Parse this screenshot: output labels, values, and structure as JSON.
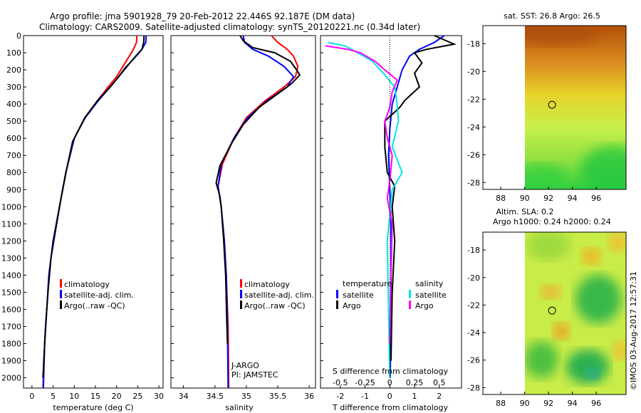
{
  "title": {
    "line1": "Argo profile: jma 5901928_79 20-Feb-2012 22.446S 92.187E (DM data)",
    "line2": "Climatology: CARS2009. Satellite-adjusted climatology: synTS_20120221.nc (0.34d later)"
  },
  "colors": {
    "climatology": "#ff0000",
    "satellite": "#0000ff",
    "argo": "#000000",
    "sat_salinity": "#00e5e5",
    "argo_salinity": "#ff00ff"
  },
  "chart_data": [
    {
      "id": "temperature",
      "type": "line",
      "xlabel": "temperature (deg C)",
      "ylabel": "",
      "xlim": [
        -2,
        31
      ],
      "ylim": [
        2060,
        0
      ],
      "xticks": [
        0,
        5,
        10,
        15,
        20,
        25,
        30
      ],
      "yticks": [
        0,
        100,
        200,
        300,
        400,
        500,
        600,
        700,
        800,
        900,
        1000,
        1100,
        1200,
        1300,
        1400,
        1500,
        1600,
        1700,
        1800,
        1900,
        2000
      ],
      "legend": {
        "position": "lower-left",
        "entries": [
          "climatology",
          "satellite-adj. clim.",
          "Argo(..raw -QC)"
        ]
      },
      "series": [
        {
          "name": "climatology",
          "color": "#ff0000",
          "points": [
            [
              24.8,
              0
            ],
            [
              24.7,
              40
            ],
            [
              24,
              80
            ],
            [
              23,
              120
            ],
            [
              21.5,
              180
            ],
            [
              20,
              240
            ],
            [
              18,
              300
            ],
            [
              15.5,
              380
            ],
            [
              12.5,
              480
            ],
            [
              10,
              600
            ],
            [
              8,
              800
            ],
            [
              6.5,
              1000
            ],
            [
              5,
              1200
            ],
            [
              4,
              1400
            ],
            [
              3.5,
              1600
            ],
            [
              3,
              1800
            ],
            [
              2.6,
              2060
            ]
          ]
        },
        {
          "name": "satellite-adj. clim.",
          "color": "#0000ff",
          "points": [
            [
              27,
              0
            ],
            [
              26.9,
              40
            ],
            [
              26,
              80
            ],
            [
              24.5,
              120
            ],
            [
              22.5,
              180
            ],
            [
              20.5,
              240
            ],
            [
              18.5,
              300
            ],
            [
              15.7,
              380
            ],
            [
              12.6,
              480
            ],
            [
              10,
              600
            ],
            [
              8,
              800
            ],
            [
              6.5,
              1000
            ],
            [
              5,
              1200
            ],
            [
              4,
              1400
            ],
            [
              3.5,
              1600
            ],
            [
              3,
              1800
            ],
            [
              2.7,
              2060
            ]
          ]
        },
        {
          "name": "Argo(..raw -QC)",
          "color": "#000000",
          "points": [
            [
              26.5,
              0
            ],
            [
              26.4,
              40
            ],
            [
              26,
              80
            ],
            [
              25,
              110
            ],
            [
              23.5,
              150
            ],
            [
              22,
              190
            ],
            [
              20.5,
              240
            ],
            [
              18.5,
              300
            ],
            [
              15.5,
              380
            ],
            [
              12.5,
              480
            ],
            [
              9.6,
              620
            ],
            [
              8.2,
              780
            ],
            [
              6.8,
              960
            ],
            [
              5.5,
              1150
            ],
            [
              4.5,
              1300
            ],
            [
              3.8,
              1500
            ],
            [
              3.2,
              1700
            ],
            [
              2.8,
              1900
            ],
            [
              2.6,
              2000
            ]
          ]
        }
      ]
    },
    {
      "id": "salinity",
      "type": "line",
      "xlabel": "salinity",
      "ylabel": "",
      "xlim": [
        33.8,
        36.1
      ],
      "ylim": [
        2060,
        0
      ],
      "xticks": [
        34,
        34.5,
        35,
        35.5,
        36
      ],
      "xtick_labels": [
        "34",
        "34.5",
        "35",
        "35.5",
        "36"
      ],
      "legend": {
        "position": "lower-right",
        "entries": [
          "climatology",
          "satellite-adj. clim.",
          "Argo(..raw -QC)"
        ]
      },
      "annotations": [
        "J-ARGO",
        "PI: JAMSTEC"
      ],
      "series": [
        {
          "name": "climatology",
          "color": "#ff0000",
          "points": [
            [
              35.4,
              0
            ],
            [
              35.5,
              40
            ],
            [
              35.65,
              80
            ],
            [
              35.75,
              120
            ],
            [
              35.82,
              180
            ],
            [
              35.78,
              240
            ],
            [
              35.6,
              300
            ],
            [
              35.3,
              380
            ],
            [
              35,
              480
            ],
            [
              34.8,
              600
            ],
            [
              34.62,
              750
            ],
            [
              34.55,
              880
            ],
            [
              34.6,
              1000
            ],
            [
              34.65,
              1200
            ],
            [
              34.68,
              1400
            ],
            [
              34.71,
              1700
            ],
            [
              34.72,
              2060
            ]
          ]
        },
        {
          "name": "satellite-adj. clim.",
          "color": "#0000ff",
          "points": [
            [
              34.95,
              0
            ],
            [
              34.97,
              40
            ],
            [
              35.1,
              80
            ],
            [
              35.35,
              120
            ],
            [
              35.6,
              180
            ],
            [
              35.75,
              240
            ],
            [
              35.65,
              300
            ],
            [
              35.33,
              380
            ],
            [
              35.02,
              480
            ],
            [
              34.8,
              600
            ],
            [
              34.6,
              750
            ],
            [
              34.55,
              880
            ],
            [
              34.6,
              1000
            ],
            [
              34.65,
              1200
            ],
            [
              34.68,
              1400
            ],
            [
              34.7,
              1700
            ],
            [
              34.71,
              2060
            ]
          ]
        },
        {
          "name": "Argo(..raw -QC)",
          "color": "#000000",
          "points": [
            [
              34.9,
              0
            ],
            [
              34.95,
              30
            ],
            [
              35.1,
              70
            ],
            [
              35.45,
              100
            ],
            [
              35.7,
              150
            ],
            [
              35.8,
              200
            ],
            [
              35.85,
              230
            ],
            [
              35.72,
              280
            ],
            [
              35.5,
              340
            ],
            [
              35.2,
              420
            ],
            [
              34.95,
              520
            ],
            [
              34.78,
              620
            ],
            [
              34.58,
              760
            ],
            [
              34.52,
              860
            ],
            [
              34.58,
              940
            ],
            [
              34.6,
              1000
            ],
            [
              34.64,
              1200
            ],
            [
              34.67,
              1400
            ],
            [
              34.69,
              1700
            ],
            [
              34.7,
              1800
            ]
          ]
        }
      ]
    },
    {
      "id": "difference",
      "type": "line",
      "xlabel": "T difference from climatology",
      "xlabel_top": "S difference from climatology",
      "xlim": [
        -2.8,
        2.9
      ],
      "ylim": [
        2060,
        0
      ],
      "xticks": [
        -2,
        -1,
        0,
        1,
        2
      ],
      "sticks": [
        "-0.5",
        "-0.25",
        "0",
        "0.25",
        "0.5"
      ],
      "legend": {
        "position": "lower-center",
        "groups": [
          {
            "title": "temperature",
            "entries": [
              "satellite",
              "Argo"
            ]
          },
          {
            "title": "salinity",
            "entries": [
              "satellite",
              "Argo"
            ]
          }
        ]
      },
      "series": [
        {
          "name": "T satellite",
          "color": "#0000ff",
          "points": [
            [
              2.2,
              0
            ],
            [
              1.8,
              40
            ],
            [
              1.2,
              80
            ],
            [
              0.8,
              120
            ],
            [
              0.5,
              200
            ],
            [
              0.3,
              300
            ],
            [
              0.1,
              400
            ],
            [
              0,
              550
            ],
            [
              -0.05,
              700
            ],
            [
              0,
              900
            ],
            [
              0.05,
              1100
            ],
            [
              0.05,
              1400
            ],
            [
              0.02,
              2000
            ]
          ]
        },
        {
          "name": "T Argo",
          "color": "#000000",
          "points": [
            [
              1.8,
              0
            ],
            [
              2.6,
              50
            ],
            [
              1.5,
              80
            ],
            [
              1.0,
              100
            ],
            [
              1.3,
              160
            ],
            [
              1.0,
              220
            ],
            [
              1.2,
              300
            ],
            [
              0.6,
              380
            ],
            [
              0.4,
              420
            ],
            [
              -0.2,
              500
            ],
            [
              -0.2,
              650
            ],
            [
              -0.1,
              800
            ],
            [
              0.2,
              880
            ],
            [
              0.1,
              1000
            ],
            [
              0.2,
              1200
            ],
            [
              0.1,
              1500
            ],
            [
              0.05,
              1900
            ]
          ]
        },
        {
          "name": "S satellite",
          "color": "#00e5e5",
          "points": [
            [
              -2.5,
              40
            ],
            [
              -1.8,
              60
            ],
            [
              -1.3,
              100
            ],
            [
              -0.7,
              150
            ],
            [
              -0.2,
              230
            ],
            [
              0.2,
              300
            ],
            [
              0.3,
              400
            ],
            [
              0.35,
              500
            ],
            [
              0.1,
              650
            ],
            [
              0.5,
              800
            ],
            [
              0.1,
              900
            ],
            [
              -0.1,
              1200
            ],
            [
              -0.05,
              1600
            ],
            [
              0,
              2000
            ]
          ]
        },
        {
          "name": "S Argo",
          "color": "#ff00ff",
          "points": [
            [
              -2.6,
              60
            ],
            [
              -1.7,
              80
            ],
            [
              -1.2,
              100
            ],
            [
              -0.6,
              150
            ],
            [
              -0.2,
              200
            ],
            [
              0.3,
              260
            ],
            [
              0.1,
              330
            ],
            [
              0,
              420
            ],
            [
              -0.2,
              500
            ],
            [
              -0.1,
              600
            ],
            [
              0.1,
              700
            ],
            [
              0,
              850
            ],
            [
              -0.1,
              950
            ],
            [
              0.1,
              1100
            ],
            [
              0.05,
              1400
            ],
            [
              0,
              1800
            ]
          ]
        }
      ]
    },
    {
      "id": "sst_map",
      "type": "heatmap",
      "title": "sat. SST: 26.8 Argo: 26.5",
      "xlim": [
        86.5,
        98.5
      ],
      "ylim": [
        -28.5,
        -16.7
      ],
      "xticks": [
        88,
        90,
        92,
        94,
        96
      ],
      "yticks": [
        -18,
        -20,
        -22,
        -24,
        -26,
        -28
      ],
      "marker": {
        "lon": 92.3,
        "lat": -22.4
      },
      "data_extent": {
        "lon": [
          90,
          98.5
        ],
        "lat": [
          -28.5,
          -16.7
        ]
      }
    },
    {
      "id": "sla_map",
      "type": "heatmap",
      "title": "Altim. SLA: 0.2",
      "subtitle": "Argo h1000: 0.24 h2000: 0.24",
      "xlim": [
        86.5,
        98.5
      ],
      "ylim": [
        -28.5,
        -16.7
      ],
      "xticks": [
        88,
        90,
        92,
        94,
        96
      ],
      "yticks": [
        -18,
        -20,
        -22,
        -24,
        -26,
        -28
      ],
      "marker": {
        "lon": 92.3,
        "lat": -22.4
      },
      "data_extent": {
        "lon": [
          90,
          98.5
        ],
        "lat": [
          -28.5,
          -16.7
        ]
      }
    }
  ],
  "credit": "©IMOS 03-Aug-2017 12:57:31"
}
